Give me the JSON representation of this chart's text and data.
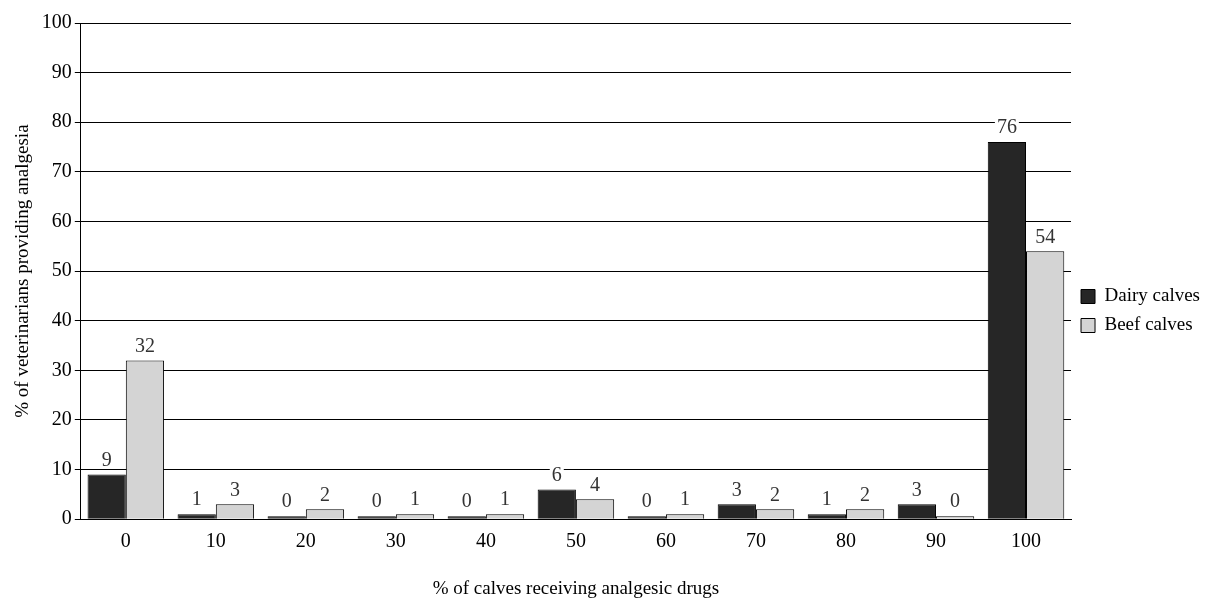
{
  "chart_data": {
    "type": "bar",
    "xlabel": "% of calves receiving analgesic drugs",
    "ylabel": "% of veterinarians providing analgesia",
    "categories": [
      "0",
      "10",
      "20",
      "30",
      "40",
      "50",
      "60",
      "70",
      "80",
      "90",
      "100"
    ],
    "series": [
      {
        "name": "Dairy calves",
        "color": "#262626",
        "values": [
          9,
          1,
          0,
          0,
          0,
          6,
          0,
          3,
          1,
          3,
          76
        ]
      },
      {
        "name": "Beef calves",
        "color": "#d4d4d4",
        "values": [
          32,
          3,
          2,
          1,
          1,
          4,
          1,
          2,
          2,
          0,
          54
        ]
      }
    ],
    "ylim": [
      0,
      100
    ],
    "yticks": [
      0,
      10,
      20,
      30,
      40,
      50,
      60,
      70,
      80,
      90,
      100
    ],
    "grid": "y",
    "legend": "right",
    "data_labels": true
  }
}
